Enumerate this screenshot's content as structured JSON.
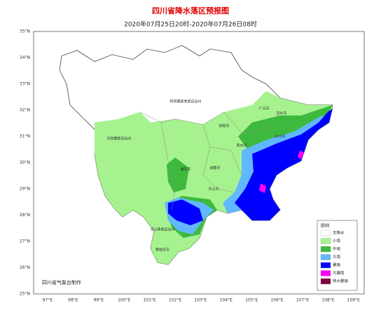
{
  "title": "四川省降水落区预报图",
  "subtitle": "2020年07月25日20时-2020年07月26日08时",
  "lat_labels": [
    "35°N",
    "34°N",
    "33°N",
    "32°N",
    "31°N",
    "30°N",
    "29°N",
    "28°N",
    "27°N",
    "26°N",
    "25°N"
  ],
  "lon_labels": [
    "97°E",
    "98°E",
    "99°E",
    "100°E",
    "101°E",
    "102°E",
    "103°E",
    "104°E",
    "105°E",
    "106°E",
    "107°E",
    "108°E",
    "109°E"
  ],
  "places": [
    "阿坝藏族羌族自治州",
    "甘孜藏族自治州",
    "凉山彝族自治州",
    "雅安市",
    "成都市",
    "绵阳市",
    "广元市",
    "巴中市",
    "达州市",
    "南充市",
    "乐山市",
    "攀枝花市"
  ],
  "legend": {
    "title": "图例",
    "items": [
      {
        "name": "无降水",
        "color": "#ffffff"
      },
      {
        "name": "小雨",
        "color": "#a6f28f"
      },
      {
        "name": "中雨",
        "color": "#3dba3d"
      },
      {
        "name": "大雨",
        "color": "#61b8ff"
      },
      {
        "name": "暴雨",
        "color": "#0000fe"
      },
      {
        "name": "大暴雨",
        "color": "#fa00fa"
      },
      {
        "name": "特大暴雨",
        "color": "#800040"
      }
    ]
  },
  "credit": "四川省气象台制作"
}
